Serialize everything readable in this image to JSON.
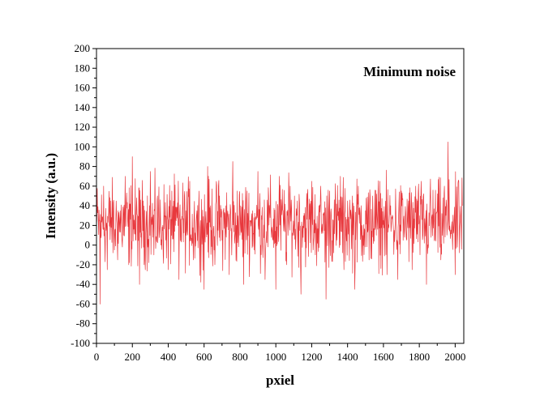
{
  "chart_data": {
    "type": "line",
    "title": "",
    "annotation": "Minimum noise",
    "xlabel": "pxiel",
    "ylabel": "Intensity (a.u.)",
    "xlim": [
      0,
      2048
    ],
    "ylim": [
      -100,
      200
    ],
    "x_ticks": [
      0,
      200,
      400,
      600,
      800,
      1000,
      1200,
      1400,
      1600,
      1800,
      2000
    ],
    "y_ticks": [
      -100,
      -80,
      -60,
      -40,
      -20,
      0,
      20,
      40,
      60,
      80,
      100,
      120,
      140,
      160,
      180,
      200
    ],
    "grid": false,
    "legend": "none",
    "series": [
      {
        "color": "#e8383d",
        "x": [
          0,
          20,
          40,
          60,
          80,
          100,
          120,
          140,
          160,
          180,
          200,
          220,
          240,
          260,
          280,
          300,
          320,
          340,
          360,
          380,
          400,
          420,
          440,
          460,
          480,
          500,
          520,
          540,
          560,
          580,
          600,
          620,
          640,
          660,
          680,
          700,
          720,
          740,
          760,
          780,
          800,
          820,
          840,
          860,
          880,
          900,
          920,
          940,
          960,
          980,
          1000,
          1020,
          1040,
          1060,
          1080,
          1100,
          1120,
          1140,
          1160,
          1180,
          1200,
          1220,
          1240,
          1260,
          1280,
          1300,
          1320,
          1340,
          1360,
          1380,
          1400,
          1420,
          1440,
          1460,
          1480,
          1500,
          1520,
          1540,
          1560,
          1580,
          1600,
          1620,
          1640,
          1660,
          1680,
          1700,
          1720,
          1740,
          1760,
          1780,
          1800,
          1820,
          1840,
          1860,
          1880,
          1900,
          1920,
          1940,
          1960,
          1980,
          2000,
          2020,
          2040
        ],
        "y": [
          20,
          -60,
          60,
          -25,
          45,
          -5,
          35,
          10,
          70,
          -20,
          90,
          5,
          -40,
          45,
          15,
          75,
          -10,
          50,
          0,
          30,
          -25,
          55,
          20,
          -35,
          40,
          10,
          65,
          -15,
          35,
          25,
          -45,
          80,
          15,
          -20,
          60,
          5,
          40,
          -30,
          85,
          20,
          10,
          -40,
          55,
          25,
          -5,
          75,
          30,
          -35,
          50,
          15,
          -45,
          70,
          35,
          -20,
          60,
          10,
          45,
          -50,
          30,
          20,
          65,
          -10,
          40,
          15,
          -55,
          55,
          25,
          5,
          70,
          -25,
          45,
          30,
          -45,
          60,
          20,
          35,
          -15,
          50,
          10,
          65,
          25,
          -30,
          40,
          15,
          -35,
          55,
          20,
          45,
          -25,
          60,
          30,
          10,
          -40,
          50,
          25,
          35,
          -15,
          60,
          105,
          20,
          -30,
          65,
          40
        ],
        "min": -60,
        "max": 105
      }
    ]
  }
}
